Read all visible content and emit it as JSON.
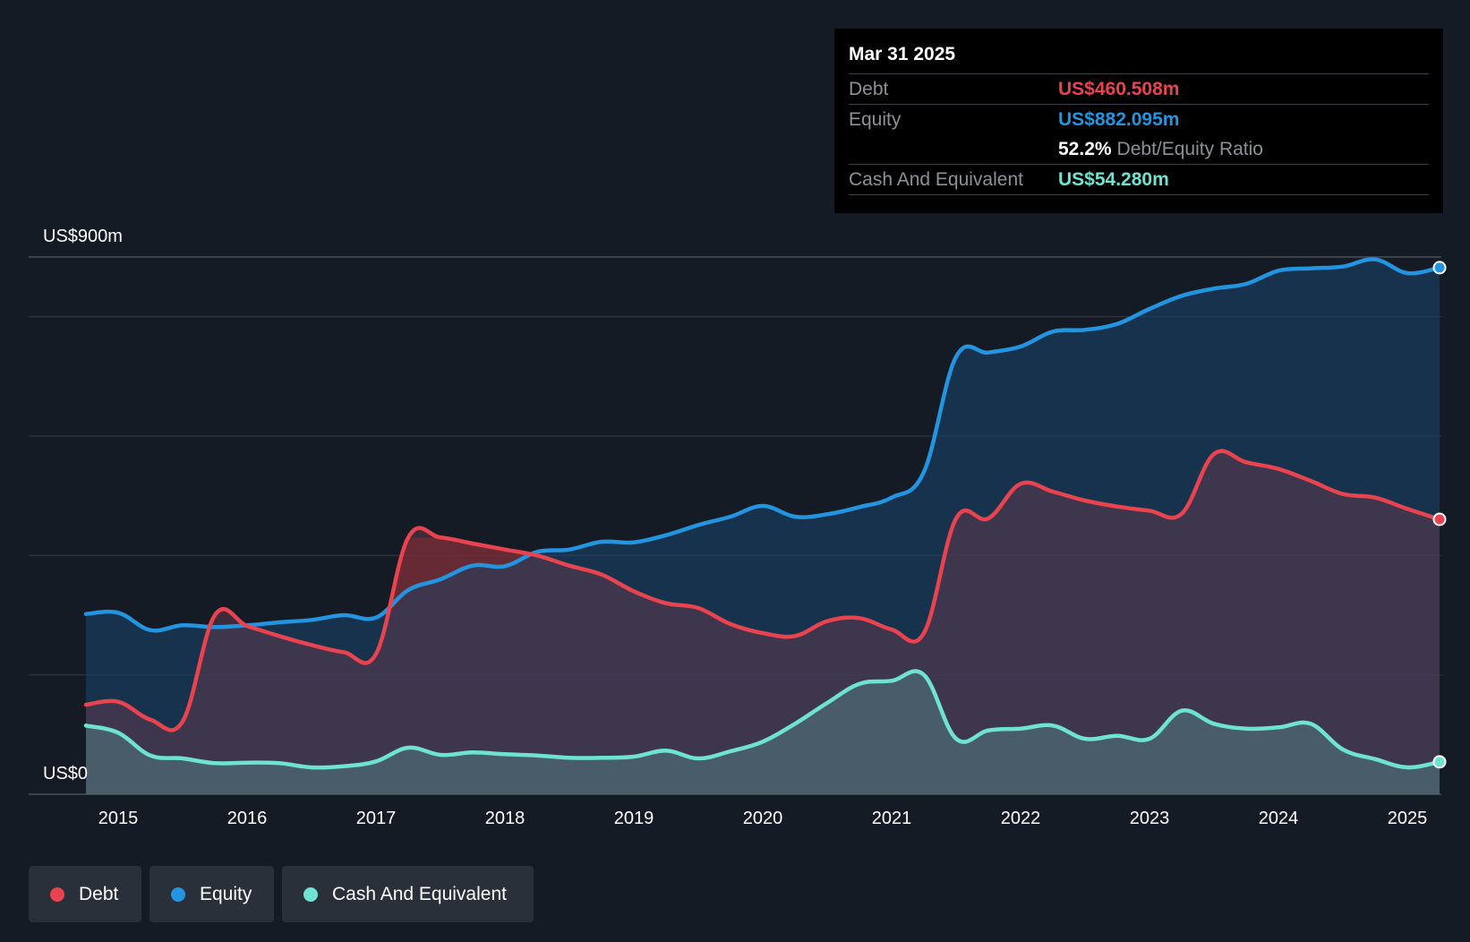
{
  "tooltip": {
    "date": "Mar 31 2025",
    "debt_label": "Debt",
    "debt_value": "US$460.508m",
    "equity_label": "Equity",
    "equity_value": "US$882.095m",
    "ratio_value": "52.2%",
    "ratio_label": "Debt/Equity Ratio",
    "cash_label": "Cash And Equivalent",
    "cash_value": "US$54.280m"
  },
  "legend": {
    "debt": "Debt",
    "equity": "Equity",
    "cash": "Cash And Equivalent"
  },
  "colors": {
    "debt": "#e8434e",
    "equity": "#2394e0",
    "cash": "#6fe3d2"
  },
  "chart_data": {
    "type": "area",
    "title": "",
    "y_top_label": "US$900m",
    "y_bottom_label": "US$0",
    "ylim": [
      0,
      900
    ],
    "x_range": [
      2014.75,
      2025.25
    ],
    "x_ticks": [
      "2015",
      "2016",
      "2017",
      "2018",
      "2019",
      "2020",
      "2021",
      "2022",
      "2023",
      "2024",
      "2025"
    ],
    "series": [
      {
        "name": "Debt",
        "points": [
          [
            2014.75,
            150
          ],
          [
            2015.0,
            155
          ],
          [
            2015.25,
            125
          ],
          [
            2015.5,
            122
          ],
          [
            2015.75,
            300
          ],
          [
            2016.0,
            282
          ],
          [
            2016.25,
            265
          ],
          [
            2016.5,
            250
          ],
          [
            2016.75,
            238
          ],
          [
            2017.0,
            235
          ],
          [
            2017.25,
            430
          ],
          [
            2017.5,
            430
          ],
          [
            2017.75,
            420
          ],
          [
            2018.0,
            410
          ],
          [
            2018.25,
            400
          ],
          [
            2018.5,
            383
          ],
          [
            2018.75,
            368
          ],
          [
            2019.0,
            340
          ],
          [
            2019.25,
            320
          ],
          [
            2019.5,
            312
          ],
          [
            2019.75,
            285
          ],
          [
            2020.0,
            270
          ],
          [
            2020.25,
            265
          ],
          [
            2020.5,
            290
          ],
          [
            2020.75,
            295
          ],
          [
            2021.0,
            276
          ],
          [
            2021.25,
            270
          ],
          [
            2021.5,
            462
          ],
          [
            2021.75,
            462
          ],
          [
            2022.0,
            520
          ],
          [
            2022.25,
            507
          ],
          [
            2022.5,
            492
          ],
          [
            2022.75,
            482
          ],
          [
            2023.0,
            475
          ],
          [
            2023.25,
            470
          ],
          [
            2023.5,
            570
          ],
          [
            2023.75,
            556
          ],
          [
            2024.0,
            545
          ],
          [
            2024.25,
            525
          ],
          [
            2024.5,
            503
          ],
          [
            2024.75,
            497
          ],
          [
            2025.0,
            478
          ],
          [
            2025.25,
            460.508
          ]
        ]
      },
      {
        "name": "Equity",
        "points": [
          [
            2014.75,
            302
          ],
          [
            2015.0,
            304
          ],
          [
            2015.25,
            275
          ],
          [
            2015.5,
            283
          ],
          [
            2015.75,
            280
          ],
          [
            2016.0,
            283
          ],
          [
            2016.25,
            288
          ],
          [
            2016.5,
            292
          ],
          [
            2016.75,
            300
          ],
          [
            2017.0,
            296
          ],
          [
            2017.25,
            342
          ],
          [
            2017.5,
            360
          ],
          [
            2017.75,
            383
          ],
          [
            2018.0,
            382
          ],
          [
            2018.25,
            406
          ],
          [
            2018.5,
            410
          ],
          [
            2018.75,
            423
          ],
          [
            2019.0,
            422
          ],
          [
            2019.25,
            434
          ],
          [
            2019.5,
            451
          ],
          [
            2019.75,
            465
          ],
          [
            2020.0,
            483
          ],
          [
            2020.25,
            465
          ],
          [
            2020.5,
            469
          ],
          [
            2020.75,
            481
          ],
          [
            2021.0,
            497
          ],
          [
            2021.25,
            540
          ],
          [
            2021.5,
            733
          ],
          [
            2021.75,
            740
          ],
          [
            2022.0,
            750
          ],
          [
            2022.25,
            775
          ],
          [
            2022.5,
            778
          ],
          [
            2022.75,
            788
          ],
          [
            2023.0,
            813
          ],
          [
            2023.25,
            835
          ],
          [
            2023.5,
            847
          ],
          [
            2023.75,
            855
          ],
          [
            2024.0,
            877
          ],
          [
            2024.25,
            881
          ],
          [
            2024.5,
            884
          ],
          [
            2024.75,
            896
          ],
          [
            2025.0,
            873
          ],
          [
            2025.25,
            882.095
          ]
        ]
      },
      {
        "name": "Cash And Equivalent",
        "points": [
          [
            2014.75,
            115
          ],
          [
            2015.0,
            103
          ],
          [
            2015.25,
            65
          ],
          [
            2015.5,
            60
          ],
          [
            2015.75,
            52
          ],
          [
            2016.0,
            53
          ],
          [
            2016.25,
            52
          ],
          [
            2016.5,
            45
          ],
          [
            2016.75,
            47
          ],
          [
            2017.0,
            55
          ],
          [
            2017.25,
            78
          ],
          [
            2017.5,
            66
          ],
          [
            2017.75,
            70
          ],
          [
            2018.0,
            67
          ],
          [
            2018.25,
            65
          ],
          [
            2018.5,
            61
          ],
          [
            2018.75,
            61
          ],
          [
            2019.0,
            63
          ],
          [
            2019.25,
            73
          ],
          [
            2019.5,
            60
          ],
          [
            2019.75,
            72
          ],
          [
            2020.0,
            88
          ],
          [
            2020.25,
            118
          ],
          [
            2020.5,
            153
          ],
          [
            2020.75,
            185
          ],
          [
            2021.0,
            190
          ],
          [
            2021.25,
            200
          ],
          [
            2021.5,
            93
          ],
          [
            2021.75,
            107
          ],
          [
            2022.0,
            110
          ],
          [
            2022.25,
            115
          ],
          [
            2022.5,
            93
          ],
          [
            2022.75,
            98
          ],
          [
            2023.0,
            93
          ],
          [
            2023.25,
            140
          ],
          [
            2023.5,
            118
          ],
          [
            2023.75,
            110
          ],
          [
            2024.0,
            112
          ],
          [
            2024.25,
            118
          ],
          [
            2024.5,
            75
          ],
          [
            2024.75,
            59
          ],
          [
            2025.0,
            45
          ],
          [
            2025.25,
            54.28
          ]
        ]
      }
    ]
  }
}
